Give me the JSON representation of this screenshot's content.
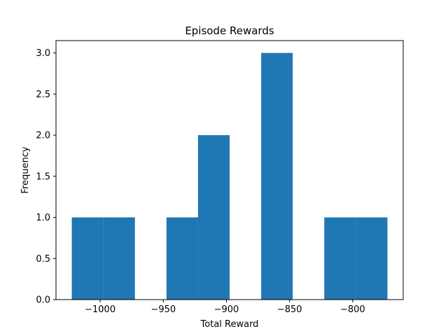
{
  "chart_data": {
    "type": "bar",
    "title": "Episode Rewards",
    "xlabel": "Total Reward",
    "ylabel": "Frequency",
    "bins": [
      {
        "x0": -1022.5,
        "x1": -997.5,
        "count": 1
      },
      {
        "x0": -997.5,
        "x1": -972.5,
        "count": 1
      },
      {
        "x0": -972.5,
        "x1": -947.5,
        "count": 0
      },
      {
        "x0": -947.5,
        "x1": -922.5,
        "count": 1
      },
      {
        "x0": -922.5,
        "x1": -897.5,
        "count": 2
      },
      {
        "x0": -897.5,
        "x1": -872.5,
        "count": 0
      },
      {
        "x0": -872.5,
        "x1": -847.5,
        "count": 3
      },
      {
        "x0": -847.5,
        "x1": -822.5,
        "count": 0
      },
      {
        "x0": -822.5,
        "x1": -797.5,
        "count": 1
      },
      {
        "x0": -797.5,
        "x1": -772.5,
        "count": 1
      }
    ],
    "xlim": [
      -1035,
      -760
    ],
    "ylim": [
      0,
      3.15
    ],
    "xticks": [
      -1000,
      -950,
      -900,
      -850,
      -800
    ],
    "xtick_labels": [
      "−1000",
      "−950",
      "−900",
      "−850",
      "−800"
    ],
    "yticks": [
      0.0,
      0.5,
      1.0,
      1.5,
      2.0,
      2.5,
      3.0
    ],
    "ytick_labels": [
      "0.0",
      "0.5",
      "1.0",
      "1.5",
      "2.0",
      "2.5",
      "3.0"
    ],
    "bar_color": "#1f77b4",
    "grid": false,
    "legend": "none"
  }
}
